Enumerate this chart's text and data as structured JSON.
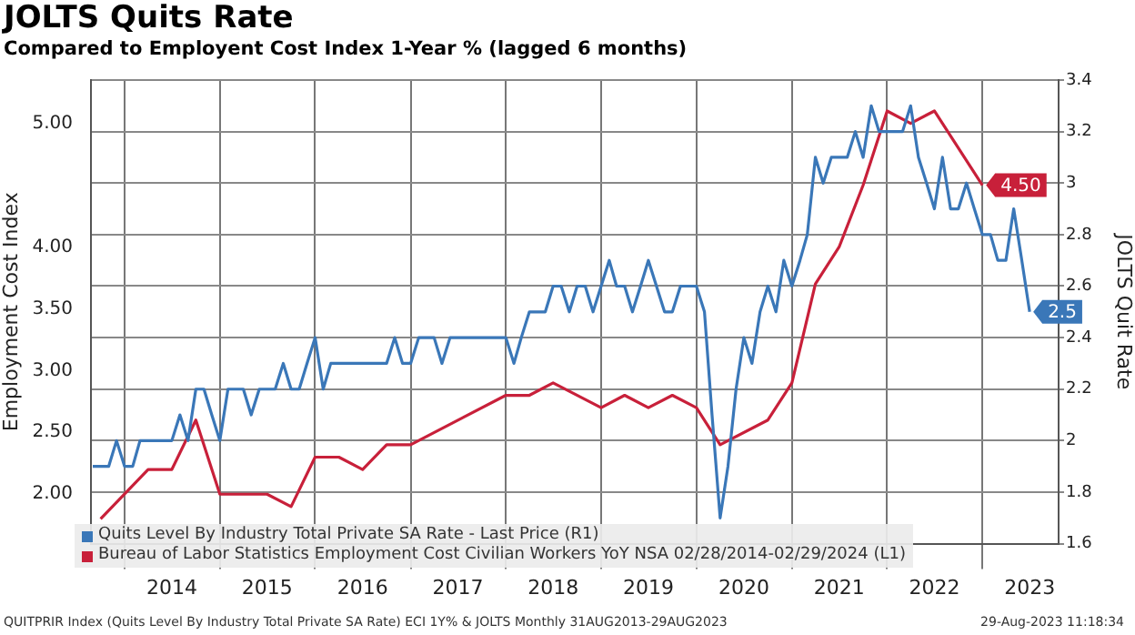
{
  "chart_data": {
    "type": "line",
    "title": "JOLTS Quits Rate",
    "subtitle": "Compared to Employent Cost Index 1-Year % (lagged 6 months)",
    "ylabel": "Employment Cost Index",
    "y2label": "JOLTS Quit Rate",
    "x": [
      "2013-09",
      "2013-10",
      "2013-11",
      "2013-12",
      "2014-01",
      "2014-02",
      "2014-03",
      "2014-04",
      "2014-05",
      "2014-06",
      "2014-07",
      "2014-08",
      "2014-09",
      "2014-10",
      "2014-11",
      "2014-12",
      "2015-01",
      "2015-02",
      "2015-03",
      "2015-04",
      "2015-05",
      "2015-06",
      "2015-07",
      "2015-08",
      "2015-09",
      "2015-10",
      "2015-11",
      "2015-12",
      "2016-01",
      "2016-02",
      "2016-03",
      "2016-04",
      "2016-05",
      "2016-06",
      "2016-07",
      "2016-08",
      "2016-09",
      "2016-10",
      "2016-11",
      "2016-12",
      "2017-01",
      "2017-02",
      "2017-03",
      "2017-04",
      "2017-05",
      "2017-06",
      "2017-07",
      "2017-08",
      "2017-09",
      "2017-10",
      "2017-11",
      "2017-12",
      "2018-01",
      "2018-02",
      "2018-03",
      "2018-04",
      "2018-05",
      "2018-06",
      "2018-07",
      "2018-08",
      "2018-09",
      "2018-10",
      "2018-11",
      "2018-12",
      "2019-01",
      "2019-02",
      "2019-03",
      "2019-04",
      "2019-05",
      "2019-06",
      "2019-07",
      "2019-08",
      "2019-09",
      "2019-10",
      "2019-11",
      "2019-12",
      "2020-01",
      "2020-02",
      "2020-03",
      "2020-04",
      "2020-05",
      "2020-06",
      "2020-07",
      "2020-08",
      "2020-09",
      "2020-10",
      "2020-11",
      "2020-12",
      "2021-01",
      "2021-02",
      "2021-03",
      "2021-04",
      "2021-05",
      "2021-06",
      "2021-07",
      "2021-08",
      "2021-09",
      "2021-10",
      "2021-11",
      "2021-12",
      "2022-01",
      "2022-02",
      "2022-03",
      "2022-04",
      "2022-05",
      "2022-06",
      "2022-07",
      "2022-08",
      "2022-09",
      "2022-10",
      "2022-11",
      "2022-12",
      "2023-01",
      "2023-02",
      "2023-03",
      "2023-04",
      "2023-05",
      "2023-06",
      "2023-07"
    ],
    "series": [
      {
        "name": "Quits Level By Industry Total Private SA Rate - Last Price (R1)",
        "color": "#3a77b8",
        "axis": "y2",
        "values": [
          1.9,
          1.9,
          1.9,
          2.0,
          1.9,
          1.9,
          2.0,
          2.0,
          2.0,
          2.0,
          2.0,
          2.1,
          2.0,
          2.2,
          2.2,
          2.1,
          2.0,
          2.2,
          2.2,
          2.2,
          2.1,
          2.2,
          2.2,
          2.2,
          2.3,
          2.2,
          2.2,
          2.3,
          2.4,
          2.2,
          2.3,
          2.3,
          2.3,
          2.3,
          2.3,
          2.3,
          2.3,
          2.3,
          2.4,
          2.3,
          2.3,
          2.4,
          2.4,
          2.4,
          2.3,
          2.4,
          2.4,
          2.4,
          2.4,
          2.4,
          2.4,
          2.4,
          2.4,
          2.3,
          2.4,
          2.5,
          2.5,
          2.5,
          2.6,
          2.6,
          2.5,
          2.6,
          2.6,
          2.5,
          2.6,
          2.7,
          2.6,
          2.6,
          2.5,
          2.6,
          2.7,
          2.6,
          2.5,
          2.5,
          2.6,
          2.6,
          2.6,
          2.5,
          2.1,
          1.7,
          1.9,
          2.2,
          2.4,
          2.3,
          2.5,
          2.6,
          2.5,
          2.7,
          2.6,
          2.7,
          2.8,
          3.1,
          3.0,
          3.1,
          3.1,
          3.1,
          3.2,
          3.1,
          3.3,
          3.2,
          3.2,
          3.2,
          3.2,
          3.3,
          3.1,
          3.0,
          2.9,
          3.1,
          2.9,
          2.9,
          3.0,
          2.9,
          2.8,
          2.8,
          2.7,
          2.7,
          2.9,
          2.7,
          2.5
        ],
        "value_labels": [
          null,
          null,
          null,
          null,
          null,
          null,
          null,
          null,
          null,
          null,
          null,
          null,
          null,
          null,
          null,
          null,
          null,
          null,
          null,
          null,
          null,
          null,
          null,
          null,
          null,
          null,
          null,
          null,
          null,
          null,
          null,
          null,
          null,
          null,
          null,
          null,
          null,
          null,
          null,
          null,
          null,
          null,
          null,
          null,
          null,
          null,
          null,
          null,
          null,
          null,
          null,
          null,
          null,
          null,
          null,
          null,
          null,
          null,
          null,
          null,
          null,
          null,
          null,
          null,
          null,
          null,
          null,
          null,
          null,
          null,
          null,
          null,
          null,
          null,
          null,
          null,
          null,
          null,
          null,
          null,
          null,
          null,
          null,
          null,
          null,
          null,
          null,
          null,
          null,
          null,
          null,
          null,
          null,
          null,
          null,
          null,
          null,
          null,
          null,
          null,
          null,
          null,
          null,
          null,
          null,
          null,
          null,
          null,
          null,
          null,
          null,
          null,
          null,
          null,
          null,
          null,
          null,
          null,
          "2.5"
        ]
      },
      {
        "name": "Bureau of Labor Statistics Employment Cost Civilian Workers YoY NSA 02/28/2014-02/29/2024 (L1)",
        "color": "#c8203a",
        "x": [
          "2013-10",
          "2014-04",
          "2014-07",
          "2014-10",
          "2015-01",
          "2015-07",
          "2015-10",
          "2016-01",
          "2016-04",
          "2016-07",
          "2016-10",
          "2017-01",
          "2018-01",
          "2018-04",
          "2018-07",
          "2019-01",
          "2019-04",
          "2019-07",
          "2019-10",
          "2020-01",
          "2020-04",
          "2020-10",
          "2021-01",
          "2021-04",
          "2021-07",
          "2021-10",
          "2022-01",
          "2022-04",
          "2022-07",
          "2023-01"
        ],
        "values": [
          1.8,
          2.2,
          2.2,
          2.6,
          2.0,
          2.0,
          1.9,
          2.3,
          2.3,
          2.2,
          2.4,
          2.4,
          2.8,
          2.8,
          2.9,
          2.7,
          2.8,
          2.7,
          2.8,
          2.7,
          2.4,
          2.6,
          2.9,
          3.7,
          4.0,
          4.5,
          5.1,
          5.0,
          5.1,
          4.5
        ],
        "value_labels": [
          null,
          null,
          null,
          null,
          null,
          null,
          null,
          null,
          null,
          null,
          null,
          null,
          null,
          null,
          null,
          null,
          null,
          null,
          null,
          null,
          null,
          null,
          null,
          null,
          null,
          null,
          null,
          null,
          null,
          "4.50"
        ]
      }
    ],
    "xlim": [
      "2013-08-25",
      "2023-10-20"
    ],
    "xticks": [
      {
        "value": "2014-01",
        "label": null
      },
      {
        "value": "2014-07",
        "label": "2014"
      },
      {
        "value": "2015-01",
        "label": null
      },
      {
        "value": "2015-07",
        "label": "2015"
      },
      {
        "value": "2016-01",
        "label": null
      },
      {
        "value": "2016-07",
        "label": "2016"
      },
      {
        "value": "2017-01",
        "label": null
      },
      {
        "value": "2017-07",
        "label": "2017"
      },
      {
        "value": "2018-01",
        "label": null
      },
      {
        "value": "2018-07",
        "label": "2018"
      },
      {
        "value": "2019-01",
        "label": null
      },
      {
        "value": "2019-07",
        "label": "2019"
      },
      {
        "value": "2020-01",
        "label": null
      },
      {
        "value": "2020-07",
        "label": "2020"
      },
      {
        "value": "2021-01",
        "label": null
      },
      {
        "value": "2021-07",
        "label": "2021"
      },
      {
        "value": "2022-01",
        "label": null
      },
      {
        "value": "2022-07",
        "label": "2022"
      },
      {
        "value": "2023-01",
        "label": null
      },
      {
        "value": "2023-07",
        "label": "2023"
      }
    ],
    "ylim": [
      1.6,
      5.35
    ],
    "yticks": [
      {
        "value": 2,
        "label": "2.00"
      },
      {
        "value": 2.5,
        "label": "2.50"
      },
      {
        "value": 3,
        "label": "3.00"
      },
      {
        "value": 3.5,
        "label": "3.50"
      },
      {
        "value": 4,
        "label": "4.00"
      },
      {
        "value": 4.5,
        "label": null
      },
      {
        "value": 5,
        "label": "5.00"
      }
    ],
    "y2lim": [
      1.6,
      3.4
    ],
    "y2ticks": [
      1.6,
      1.8,
      2.0,
      2.2,
      2.4,
      2.6,
      2.8,
      3.0,
      3.2,
      3.4
    ],
    "grid": true,
    "legend": "bottom left",
    "marker": "none",
    "line_style": "solid",
    "annotations": [
      "QUITPRIR Index (Quits Level By Industry Total Private SA Rate) ECI 1Y% & JOLTS  Monthly 31AUG2013-29AUG2023",
      "29-Aug-2023 11:18:34"
    ]
  }
}
